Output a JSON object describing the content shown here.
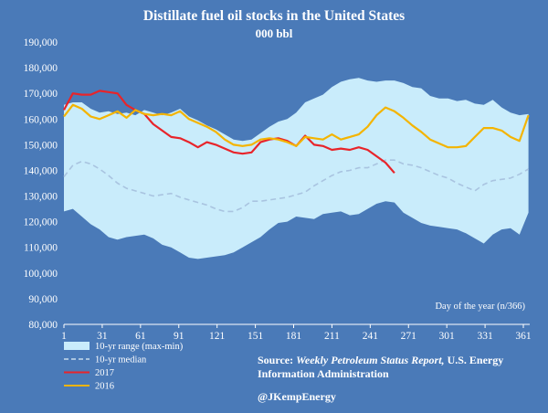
{
  "chart_data": {
    "type": "area",
    "title": "Distillate fuel oil stocks in the United States",
    "subtitle": "000 bbl",
    "xlabel": "Day of the year (n/366)",
    "ylabel": "",
    "xlim": [
      1,
      366
    ],
    "ylim": [
      80000,
      190000
    ],
    "x_ticks": [
      1,
      31,
      61,
      91,
      121,
      151,
      181,
      211,
      241,
      271,
      301,
      331,
      361
    ],
    "y_ticks": [
      80000,
      90000,
      100000,
      110000,
      120000,
      130000,
      140000,
      150000,
      160000,
      170000,
      180000,
      190000
    ],
    "y_tick_labels": [
      "80,000",
      "90,000",
      "100,000",
      "110,000",
      "120,000",
      "130,000",
      "140,000",
      "150,000",
      "160,000",
      "170,000",
      "180,000",
      "190,000"
    ],
    "range": {
      "name": "10-yr range (max-min)",
      "color": "#c9ecfb",
      "x": [
        1,
        8,
        15,
        22,
        29,
        36,
        43,
        50,
        57,
        64,
        71,
        78,
        85,
        92,
        99,
        106,
        113,
        120,
        127,
        134,
        141,
        148,
        155,
        162,
        169,
        176,
        183,
        190,
        197,
        204,
        211,
        218,
        225,
        232,
        239,
        246,
        253,
        260,
        267,
        274,
        281,
        288,
        295,
        302,
        309,
        316,
        323,
        330,
        337,
        344,
        351,
        358,
        365
      ],
      "max": [
        165500,
        166500,
        166500,
        164000,
        162500,
        163000,
        162000,
        162500,
        161500,
        163500,
        162500,
        161500,
        162500,
        164000,
        161000,
        159500,
        157500,
        156000,
        154000,
        152000,
        151500,
        152000,
        154500,
        157000,
        159000,
        160000,
        162500,
        166500,
        168000,
        169500,
        172500,
        174500,
        175500,
        176000,
        175000,
        174500,
        175000,
        175000,
        174000,
        172500,
        172000,
        169000,
        168000,
        168000,
        167000,
        167500,
        166000,
        165500,
        167500,
        164500,
        162500,
        161500,
        162000
      ],
      "min": [
        124000,
        125000,
        122000,
        119000,
        117000,
        114000,
        113000,
        114000,
        114500,
        115000,
        113500,
        111000,
        110000,
        108000,
        106000,
        105500,
        106000,
        106500,
        107000,
        108000,
        110000,
        112000,
        114000,
        117000,
        119500,
        120000,
        122000,
        121500,
        121000,
        123000,
        123500,
        124000,
        122500,
        123000,
        125000,
        127000,
        128000,
        127500,
        123500,
        121500,
        119500,
        118500,
        118000,
        117500,
        117000,
        115500,
        113500,
        111500,
        115000,
        117000,
        117500,
        115000,
        123500
      ]
    },
    "series": [
      {
        "name": "10-yr median",
        "color": "#a9c4e0",
        "dashed": true,
        "x": [
          1,
          8,
          15,
          22,
          29,
          36,
          43,
          50,
          57,
          64,
          71,
          78,
          85,
          92,
          99,
          106,
          113,
          120,
          127,
          134,
          141,
          148,
          155,
          162,
          169,
          176,
          183,
          190,
          197,
          204,
          211,
          218,
          225,
          232,
          239,
          246,
          253,
          260,
          267,
          274,
          281,
          288,
          295,
          302,
          309,
          316,
          323,
          330,
          337,
          344,
          351,
          358,
          365
        ],
        "values": [
          137500,
          142000,
          143500,
          142500,
          140500,
          138000,
          135000,
          133000,
          132000,
          131000,
          130000,
          130500,
          131000,
          129500,
          128500,
          127500,
          126500,
          125000,
          124000,
          124000,
          125500,
          128000,
          128000,
          128500,
          129000,
          129500,
          130500,
          131500,
          134000,
          136000,
          138000,
          139500,
          140000,
          141000,
          141000,
          142500,
          144000,
          144000,
          142500,
          142000,
          141000,
          139500,
          138000,
          137000,
          135000,
          133500,
          132000,
          134500,
          136000,
          136500,
          137000,
          138500,
          140500
        ]
      },
      {
        "name": "2017",
        "color": "#e8242a",
        "dashed": false,
        "x": [
          1,
          8,
          15,
          22,
          29,
          36,
          43,
          50,
          57,
          64,
          71,
          78,
          85,
          92,
          99,
          106,
          113,
          120,
          127,
          134,
          141,
          148,
          155,
          162,
          169,
          176,
          183,
          190,
          197,
          204,
          211,
          218,
          225,
          232,
          239,
          246,
          253,
          260
        ],
        "values": [
          163500,
          170000,
          169500,
          169500,
          171000,
          170500,
          170000,
          165500,
          163500,
          162000,
          158000,
          155500,
          153000,
          152500,
          151000,
          149000,
          151000,
          150000,
          148500,
          147000,
          146500,
          147000,
          151000,
          152000,
          152500,
          151500,
          149500,
          153500,
          150000,
          149500,
          148000,
          148500,
          148000,
          149000,
          148000,
          145500,
          143000,
          139000
        ]
      },
      {
        "name": "2016",
        "color": "#f4b400",
        "dashed": false,
        "x": [
          1,
          8,
          15,
          22,
          29,
          36,
          43,
          50,
          57,
          64,
          71,
          78,
          85,
          92,
          99,
          106,
          113,
          120,
          127,
          134,
          141,
          148,
          155,
          162,
          169,
          176,
          183,
          190,
          197,
          204,
          211,
          218,
          225,
          232,
          239,
          246,
          253,
          260,
          267,
          274,
          281,
          288,
          295,
          302,
          309,
          316,
          323,
          330,
          337,
          344,
          351,
          358,
          365
        ],
        "values": [
          161000,
          165500,
          164000,
          161000,
          160000,
          161500,
          163000,
          160500,
          163500,
          162000,
          161500,
          162000,
          161500,
          163000,
          160000,
          158500,
          157000,
          155000,
          152000,
          150000,
          149500,
          150000,
          152000,
          152500,
          152000,
          151000,
          149500,
          153000,
          152500,
          152000,
          154000,
          152000,
          153000,
          154000,
          157000,
          161500,
          164500,
          163000,
          160500,
          157500,
          155000,
          152000,
          150500,
          149000,
          149000,
          149500,
          153000,
          156500,
          156500,
          155500,
          153000,
          151500,
          161500
        ]
      }
    ],
    "legend": {
      "placement": "bottom-left",
      "items": [
        {
          "label": "10-yr range (max-min)",
          "kind": "area",
          "color": "#c9ecfb"
        },
        {
          "label": "10-yr median",
          "kind": "dashed",
          "color": "#a9c4e0"
        },
        {
          "label": "2017",
          "kind": "line",
          "color": "#e8242a"
        },
        {
          "label": "2016",
          "kind": "line",
          "color": "#f4b400"
        }
      ]
    },
    "source": {
      "prefix": "Source: ",
      "publication": "Weekly Petroleum Status Report,",
      "rest": " U.S. Energy",
      "line2": "Information Administration"
    },
    "author": "@JKempEnergy",
    "grid": false,
    "background_color": "#4a7ab8"
  }
}
